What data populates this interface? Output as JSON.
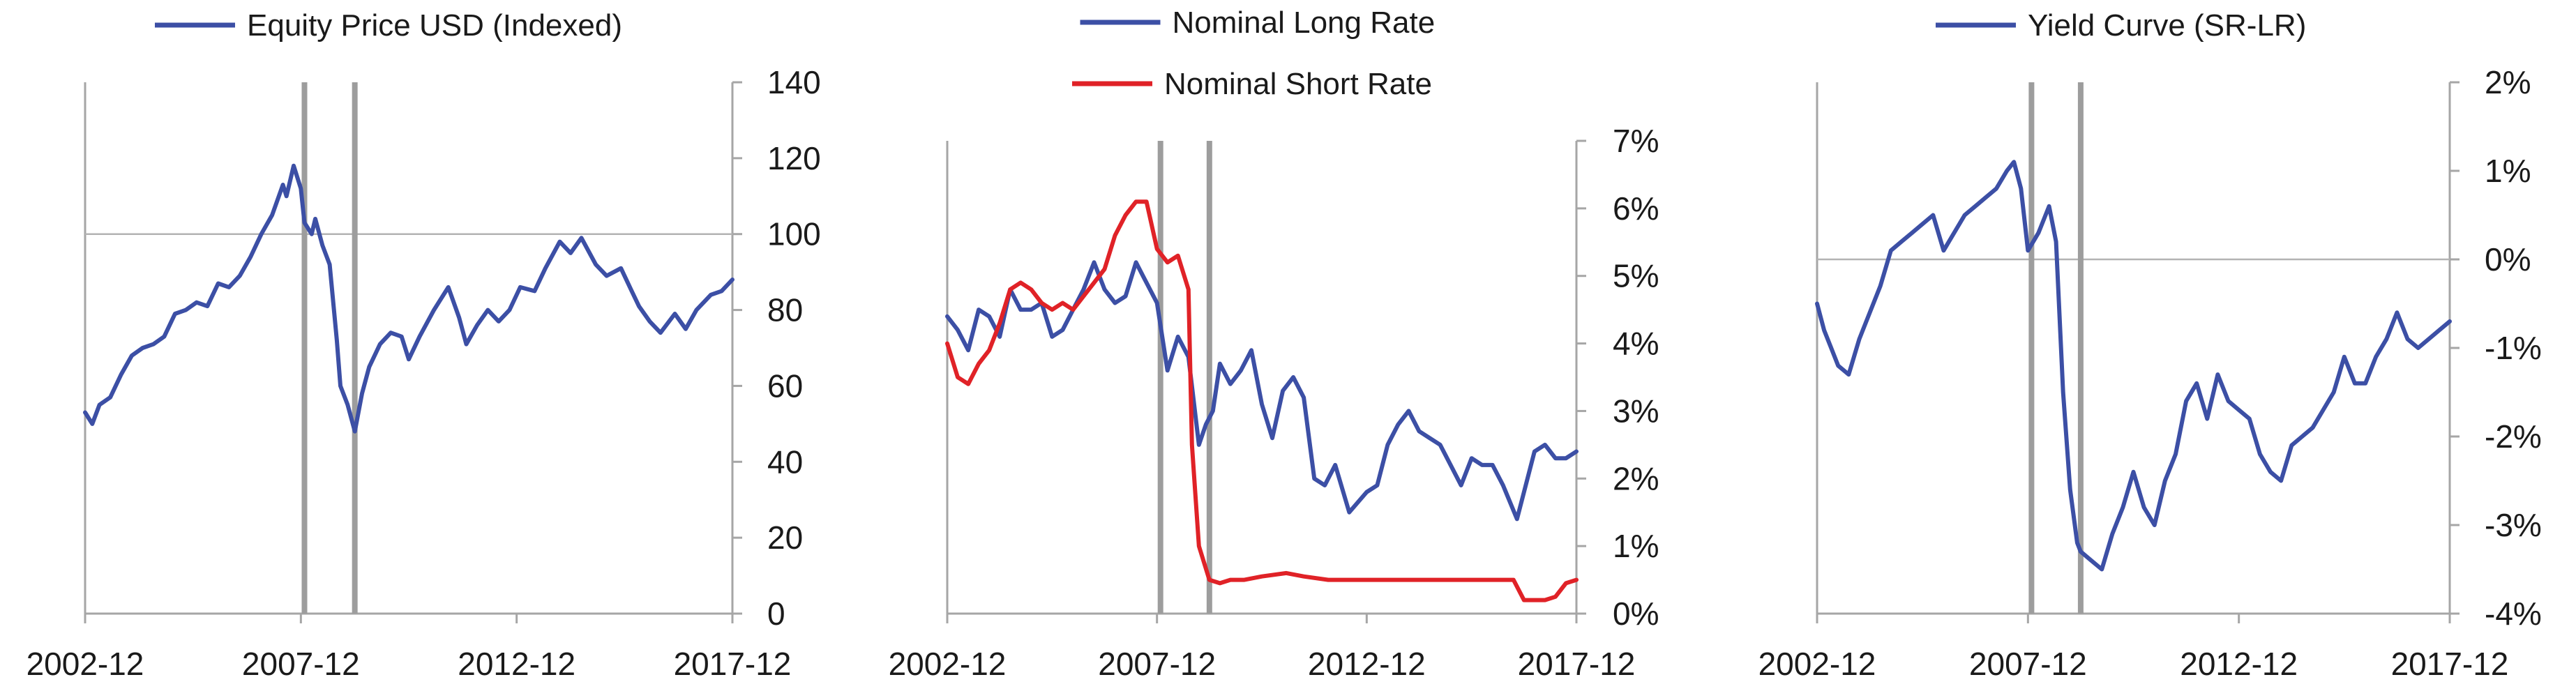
{
  "chart_data": [
    {
      "type": "line",
      "title": "",
      "xlabel": "",
      "ylabel": "",
      "x_start": "2002-12",
      "x_end": "2017-12",
      "x_ticks": [
        "2002-12",
        "2007-12",
        "2012-12",
        "2017-12"
      ],
      "ylim": [
        0,
        140
      ],
      "y_ticks": [
        0,
        20,
        40,
        60,
        80,
        100,
        120,
        140
      ],
      "y_tick_labels": [
        "0",
        "20",
        "40",
        "60",
        "80",
        "100",
        "120",
        "140"
      ],
      "y_axis_side": "right",
      "reference_lines": [
        100
      ],
      "marker_lines": [
        "2008-01",
        "2009-03"
      ],
      "legend": "top-center",
      "series": [
        {
          "name": "Equity Price USD (Indexed)",
          "color": "#3c4fa5",
          "points": [
            [
              "2002-12",
              53
            ],
            [
              "2003-02",
              50
            ],
            [
              "2003-04",
              55
            ],
            [
              "2003-07",
              57
            ],
            [
              "2003-10",
              63
            ],
            [
              "2004-01",
              68
            ],
            [
              "2004-04",
              70
            ],
            [
              "2004-07",
              71
            ],
            [
              "2004-10",
              73
            ],
            [
              "2005-01",
              79
            ],
            [
              "2005-04",
              80
            ],
            [
              "2005-07",
              82
            ],
            [
              "2005-10",
              81
            ],
            [
              "2006-01",
              87
            ],
            [
              "2006-04",
              86
            ],
            [
              "2006-07",
              89
            ],
            [
              "2006-10",
              94
            ],
            [
              "2007-01",
              100
            ],
            [
              "2007-04",
              105
            ],
            [
              "2007-07",
              113
            ],
            [
              "2007-08",
              110
            ],
            [
              "2007-10",
              118
            ],
            [
              "2007-12",
              112
            ],
            [
              "2008-01",
              103
            ],
            [
              "2008-03",
              100
            ],
            [
              "2008-04",
              104
            ],
            [
              "2008-06",
              97
            ],
            [
              "2008-08",
              92
            ],
            [
              "2008-10",
              72
            ],
            [
              "2008-11",
              60
            ],
            [
              "2009-01",
              55
            ],
            [
              "2009-03",
              48
            ],
            [
              "2009-05",
              58
            ],
            [
              "2009-07",
              65
            ],
            [
              "2009-10",
              71
            ],
            [
              "2010-01",
              74
            ],
            [
              "2010-04",
              73
            ],
            [
              "2010-06",
              67
            ],
            [
              "2010-09",
              73
            ],
            [
              "2011-01",
              80
            ],
            [
              "2011-05",
              86
            ],
            [
              "2011-08",
              78
            ],
            [
              "2011-10",
              71
            ],
            [
              "2012-01",
              76
            ],
            [
              "2012-04",
              80
            ],
            [
              "2012-07",
              77
            ],
            [
              "2012-10",
              80
            ],
            [
              "2013-01",
              86
            ],
            [
              "2013-05",
              85
            ],
            [
              "2013-08",
              91
            ],
            [
              "2013-12",
              98
            ],
            [
              "2014-03",
              95
            ],
            [
              "2014-06",
              99
            ],
            [
              "2014-10",
              92
            ],
            [
              "2015-01",
              89
            ],
            [
              "2015-05",
              91
            ],
            [
              "2015-08",
              85
            ],
            [
              "2015-10",
              81
            ],
            [
              "2016-01",
              77
            ],
            [
              "2016-04",
              74
            ],
            [
              "2016-08",
              79
            ],
            [
              "2016-11",
              75
            ],
            [
              "2017-02",
              80
            ],
            [
              "2017-06",
              84
            ],
            [
              "2017-09",
              85
            ],
            [
              "2017-12",
              88
            ]
          ]
        }
      ]
    },
    {
      "type": "line",
      "title": "",
      "xlabel": "",
      "ylabel": "",
      "x_start": "2002-12",
      "x_end": "2017-12",
      "x_ticks": [
        "2002-12",
        "2007-12",
        "2012-12",
        "2017-12"
      ],
      "ylim": [
        0,
        7
      ],
      "y_ticks": [
        0,
        1,
        2,
        3,
        4,
        5,
        6,
        7
      ],
      "y_tick_labels": [
        "0%",
        "1%",
        "2%",
        "3%",
        "4%",
        "5%",
        "6%",
        "7%"
      ],
      "y_axis_side": "right",
      "marker_lines": [
        "2008-01",
        "2009-03"
      ],
      "legend": "top-center",
      "series": [
        {
          "name": "Nominal Long Rate",
          "color": "#3c4fa5",
          "points": [
            [
              "2002-12",
              4.4
            ],
            [
              "2003-03",
              4.2
            ],
            [
              "2003-06",
              3.9
            ],
            [
              "2003-09",
              4.5
            ],
            [
              "2003-12",
              4.4
            ],
            [
              "2004-03",
              4.1
            ],
            [
              "2004-06",
              4.8
            ],
            [
              "2004-09",
              4.5
            ],
            [
              "2004-12",
              4.5
            ],
            [
              "2005-03",
              4.6
            ],
            [
              "2005-06",
              4.1
            ],
            [
              "2005-09",
              4.2
            ],
            [
              "2005-12",
              4.5
            ],
            [
              "2006-03",
              4.8
            ],
            [
              "2006-06",
              5.2
            ],
            [
              "2006-09",
              4.8
            ],
            [
              "2006-12",
              4.6
            ],
            [
              "2007-03",
              4.7
            ],
            [
              "2007-06",
              5.2
            ],
            [
              "2007-08",
              5.0
            ],
            [
              "2007-12",
              4.6
            ],
            [
              "2008-03",
              3.6
            ],
            [
              "2008-06",
              4.1
            ],
            [
              "2008-09",
              3.8
            ],
            [
              "2008-12",
              2.5
            ],
            [
              "2009-02",
              2.8
            ],
            [
              "2009-04",
              3.0
            ],
            [
              "2009-06",
              3.7
            ],
            [
              "2009-09",
              3.4
            ],
            [
              "2009-12",
              3.6
            ],
            [
              "2010-03",
              3.9
            ],
            [
              "2010-06",
              3.1
            ],
            [
              "2010-09",
              2.6
            ],
            [
              "2010-12",
              3.3
            ],
            [
              "2011-03",
              3.5
            ],
            [
              "2011-06",
              3.2
            ],
            [
              "2011-09",
              2.0
            ],
            [
              "2011-12",
              1.9
            ],
            [
              "2012-03",
              2.2
            ],
            [
              "2012-07",
              1.5
            ],
            [
              "2012-12",
              1.8
            ],
            [
              "2013-03",
              1.9
            ],
            [
              "2013-06",
              2.5
            ],
            [
              "2013-09",
              2.8
            ],
            [
              "2013-12",
              3.0
            ],
            [
              "2014-03",
              2.7
            ],
            [
              "2014-06",
              2.6
            ],
            [
              "2014-09",
              2.5
            ],
            [
              "2014-12",
              2.2
            ],
            [
              "2015-03",
              1.9
            ],
            [
              "2015-06",
              2.3
            ],
            [
              "2015-09",
              2.2
            ],
            [
              "2015-12",
              2.2
            ],
            [
              "2016-03",
              1.9
            ],
            [
              "2016-07",
              1.4
            ],
            [
              "2016-12",
              2.4
            ],
            [
              "2017-03",
              2.5
            ],
            [
              "2017-06",
              2.3
            ],
            [
              "2017-09",
              2.3
            ],
            [
              "2017-12",
              2.4
            ]
          ]
        },
        {
          "name": "Nominal Short Rate",
          "color": "#e02227",
          "points": [
            [
              "2002-12",
              4.0
            ],
            [
              "2003-03",
              3.5
            ],
            [
              "2003-06",
              3.4
            ],
            [
              "2003-09",
              3.7
            ],
            [
              "2003-12",
              3.9
            ],
            [
              "2004-03",
              4.3
            ],
            [
              "2004-06",
              4.8
            ],
            [
              "2004-09",
              4.9
            ],
            [
              "2004-12",
              4.8
            ],
            [
              "2005-03",
              4.6
            ],
            [
              "2005-06",
              4.5
            ],
            [
              "2005-09",
              4.6
            ],
            [
              "2005-12",
              4.5
            ],
            [
              "2006-03",
              4.7
            ],
            [
              "2006-06",
              4.9
            ],
            [
              "2006-09",
              5.1
            ],
            [
              "2006-12",
              5.6
            ],
            [
              "2007-03",
              5.9
            ],
            [
              "2007-06",
              6.1
            ],
            [
              "2007-09",
              6.1
            ],
            [
              "2007-12",
              5.4
            ],
            [
              "2008-03",
              5.2
            ],
            [
              "2008-06",
              5.3
            ],
            [
              "2008-09",
              4.8
            ],
            [
              "2008-10",
              2.5
            ],
            [
              "2008-12",
              1.0
            ],
            [
              "2009-03",
              0.5
            ],
            [
              "2009-06",
              0.45
            ],
            [
              "2009-09",
              0.5
            ],
            [
              "2010-01",
              0.5
            ],
            [
              "2010-06",
              0.55
            ],
            [
              "2011-01",
              0.6
            ],
            [
              "2011-06",
              0.55
            ],
            [
              "2012-01",
              0.5
            ],
            [
              "2013-01",
              0.5
            ],
            [
              "2014-01",
              0.5
            ],
            [
              "2015-01",
              0.5
            ],
            [
              "2016-01",
              0.5
            ],
            [
              "2016-06",
              0.5
            ],
            [
              "2016-09",
              0.2
            ],
            [
              "2017-03",
              0.2
            ],
            [
              "2017-06",
              0.25
            ],
            [
              "2017-09",
              0.45
            ],
            [
              "2017-12",
              0.5
            ]
          ]
        }
      ]
    },
    {
      "type": "line",
      "title": "",
      "xlabel": "",
      "ylabel": "",
      "x_start": "2002-12",
      "x_end": "2017-12",
      "x_ticks": [
        "2002-12",
        "2007-12",
        "2012-12",
        "2017-12"
      ],
      "ylim": [
        -4,
        2
      ],
      "y_ticks": [
        -4,
        -3,
        -2,
        -1,
        0,
        1,
        2
      ],
      "y_tick_labels": [
        "-4%",
        "-3%",
        "-2%",
        "-1%",
        "0%",
        "1%",
        "2%"
      ],
      "y_axis_side": "right",
      "reference_lines": [
        0
      ],
      "marker_lines": [
        "2008-01",
        "2009-03"
      ],
      "legend": "top-center",
      "series": [
        {
          "name": "Yield Curve (SR-LR)",
          "color": "#3c4fa5",
          "points": [
            [
              "2002-12",
              -0.5
            ],
            [
              "2003-02",
              -0.8
            ],
            [
              "2003-04",
              -1.0
            ],
            [
              "2003-06",
              -1.2
            ],
            [
              "2003-09",
              -1.3
            ],
            [
              "2003-12",
              -0.9
            ],
            [
              "2004-03",
              -0.6
            ],
            [
              "2004-06",
              -0.3
            ],
            [
              "2004-09",
              0.1
            ],
            [
              "2004-12",
              0.2
            ],
            [
              "2005-03",
              0.3
            ],
            [
              "2005-06",
              0.4
            ],
            [
              "2005-09",
              0.5
            ],
            [
              "2005-12",
              0.1
            ],
            [
              "2006-03",
              0.3
            ],
            [
              "2006-06",
              0.5
            ],
            [
              "2006-09",
              0.6
            ],
            [
              "2006-12",
              0.7
            ],
            [
              "2007-03",
              0.8
            ],
            [
              "2007-06",
              1.0
            ],
            [
              "2007-08",
              1.1
            ],
            [
              "2007-10",
              0.8
            ],
            [
              "2007-12",
              0.1
            ],
            [
              "2008-03",
              0.3
            ],
            [
              "2008-06",
              0.6
            ],
            [
              "2008-08",
              0.2
            ],
            [
              "2008-10",
              -1.5
            ],
            [
              "2008-12",
              -2.6
            ],
            [
              "2009-02",
              -3.2
            ],
            [
              "2009-03",
              -3.3
            ],
            [
              "2009-06",
              -3.4
            ],
            [
              "2009-09",
              -3.5
            ],
            [
              "2009-12",
              -3.1
            ],
            [
              "2010-03",
              -2.8
            ],
            [
              "2010-06",
              -2.4
            ],
            [
              "2010-09",
              -2.8
            ],
            [
              "2010-12",
              -3.0
            ],
            [
              "2011-03",
              -2.5
            ],
            [
              "2011-06",
              -2.2
            ],
            [
              "2011-09",
              -1.6
            ],
            [
              "2011-12",
              -1.4
            ],
            [
              "2012-03",
              -1.8
            ],
            [
              "2012-06",
              -1.3
            ],
            [
              "2012-09",
              -1.6
            ],
            [
              "2012-12",
              -1.7
            ],
            [
              "2013-03",
              -1.8
            ],
            [
              "2013-06",
              -2.2
            ],
            [
              "2013-09",
              -2.4
            ],
            [
              "2013-12",
              -2.5
            ],
            [
              "2014-03",
              -2.1
            ],
            [
              "2014-06",
              -2.0
            ],
            [
              "2014-09",
              -1.9
            ],
            [
              "2014-12",
              -1.7
            ],
            [
              "2015-03",
              -1.5
            ],
            [
              "2015-06",
              -1.1
            ],
            [
              "2015-09",
              -1.4
            ],
            [
              "2015-12",
              -1.4
            ],
            [
              "2016-03",
              -1.1
            ],
            [
              "2016-06",
              -0.9
            ],
            [
              "2016-09",
              -0.6
            ],
            [
              "2016-12",
              -0.9
            ],
            [
              "2017-03",
              -1.0
            ],
            [
              "2017-06",
              -0.9
            ],
            [
              "2017-09",
              -0.8
            ],
            [
              "2017-12",
              -0.7
            ]
          ]
        }
      ]
    }
  ]
}
